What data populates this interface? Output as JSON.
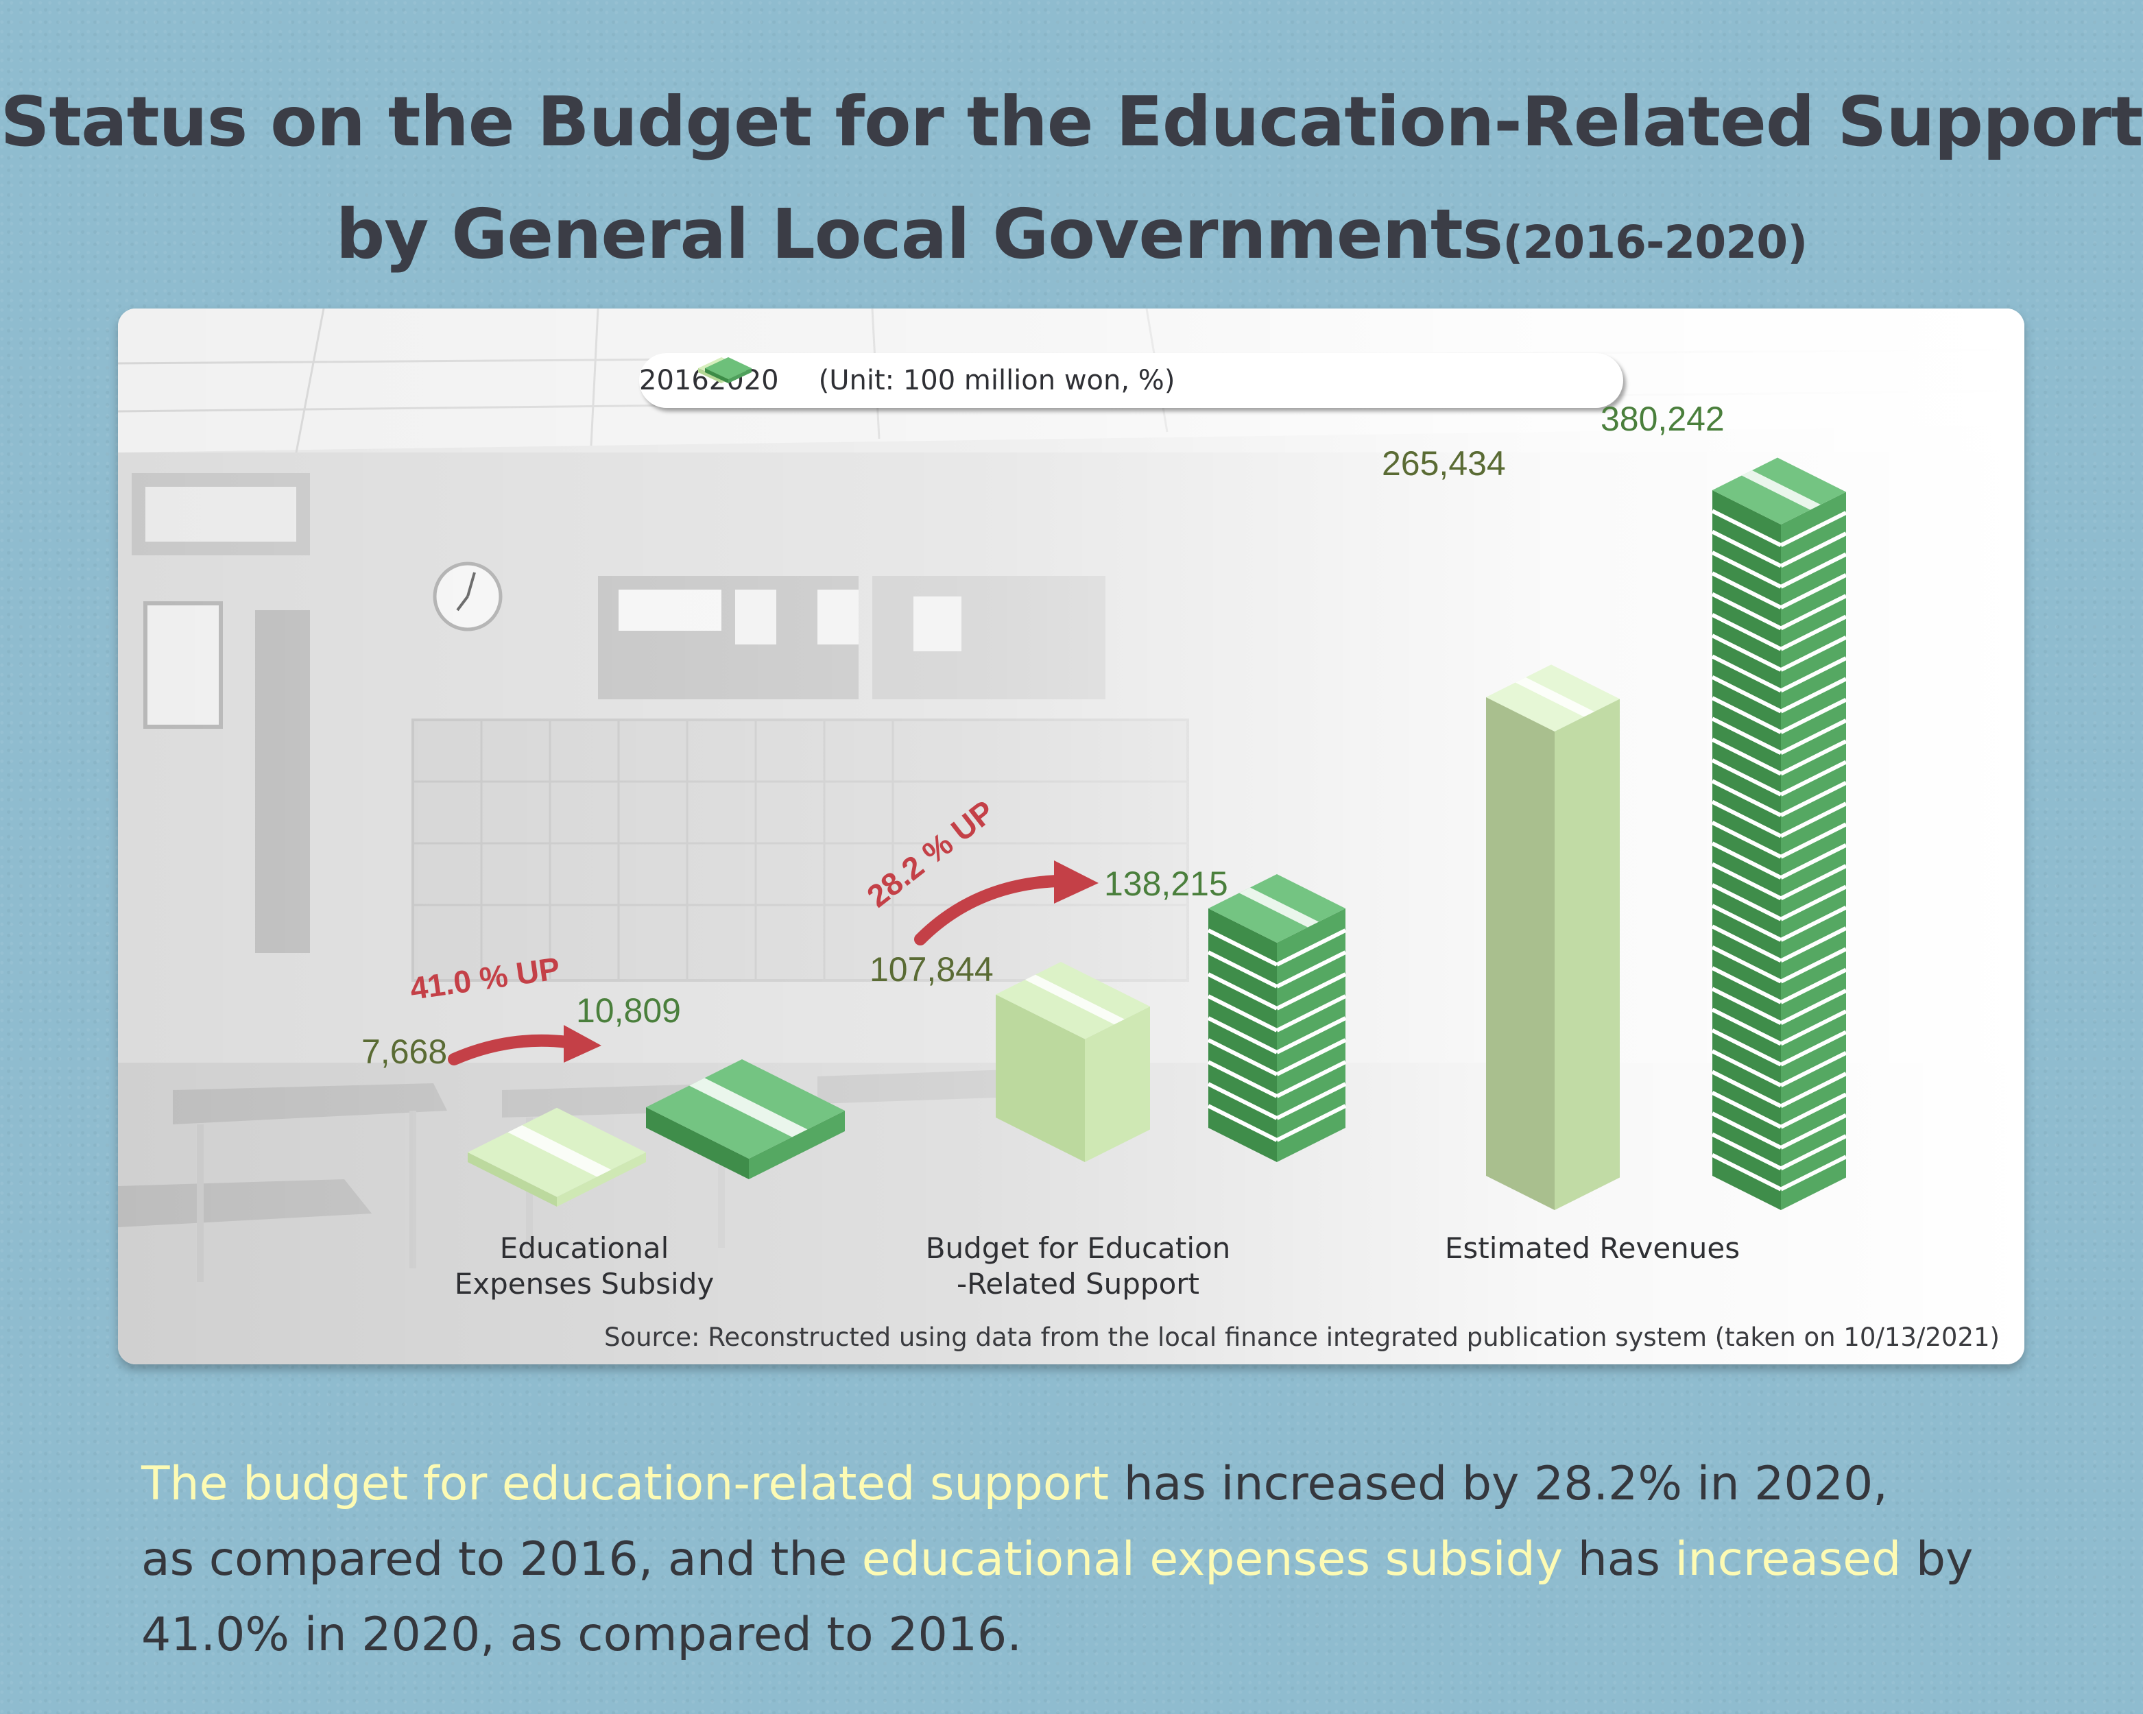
{
  "title": {
    "line1": "Status on the Budget for the Education-Related Support",
    "line2": "by General Local Governments",
    "years": "(2016-2020)"
  },
  "legend": {
    "series1": "2016",
    "series2": "2020",
    "unit": "(Unit: 100 million won, %)"
  },
  "colors": {
    "light_green": "#c9e6a8",
    "dark_green": "#4f9b57",
    "increase_red": "#c44047",
    "background_blue": "#8fbccf",
    "highlight_yellow": "#fdfbb4"
  },
  "chart_data": {
    "type": "bar",
    "categories": [
      "Educational Expenses Subsidy",
      "Budget for Education-Related Support",
      "Estimated Revenues"
    ],
    "category_labels": [
      [
        "Educational",
        "Expenses Subsidy"
      ],
      [
        "Budget for Education",
        "-Related Support"
      ],
      [
        "Estimated Revenues"
      ]
    ],
    "series": [
      {
        "name": "2016",
        "values": [
          7668,
          107844,
          265434
        ],
        "labels": [
          "7,668",
          "107,844",
          "265,434"
        ]
      },
      {
        "name": "2020",
        "values": [
          10809,
          138215,
          380242
        ],
        "labels": [
          "10,809",
          "138,215",
          "380,242"
        ]
      }
    ],
    "increases": [
      "41.0 % UP",
      "28.2 % UP"
    ],
    "unit": "(Unit: 100 million won, %)",
    "source": "Source: Reconstructed using data from the local finance integrated publication system (taken on 10/13/2021)"
  },
  "summary": {
    "p1": "The budget for education-related support",
    "p2": " has increased by 28.2% in 2020,",
    "p3": "as compared to 2016, and the ",
    "p4": "educational expenses subsidy",
    "p5": " has ",
    "p6": "increased",
    "p7": " by",
    "p8": "41.0% in 2020, as compared to 2016."
  }
}
